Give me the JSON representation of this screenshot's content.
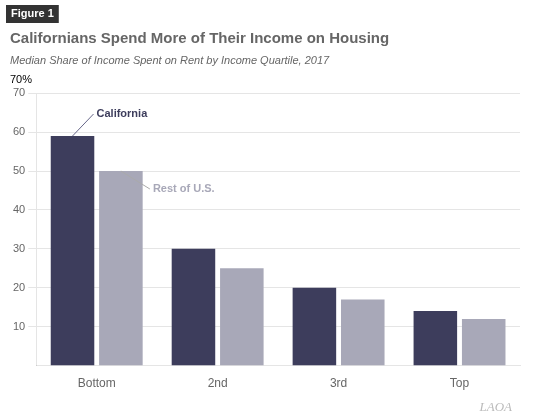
{
  "chart_data": {
    "type": "bar",
    "title": "Californians Spend More of Their Income on Housing",
    "subtitle": "Median Share of Income Spent on Rent by Income Quartile, 2017",
    "categories": [
      "Bottom",
      "2nd",
      "3rd",
      "Top"
    ],
    "series": [
      {
        "name": "California",
        "color": "#3d3d5c",
        "values": [
          59,
          30,
          20,
          14
        ]
      },
      {
        "name": "Rest of U.S.",
        "color": "#a8a8b8",
        "values": [
          50,
          25,
          17,
          12
        ]
      }
    ],
    "ylim": [
      0,
      70
    ],
    "yticks": [
      10,
      20,
      30,
      40,
      50,
      60,
      70
    ],
    "grid": true,
    "annotations": [
      "Figure 1",
      "70%",
      "LAOA"
    ]
  }
}
